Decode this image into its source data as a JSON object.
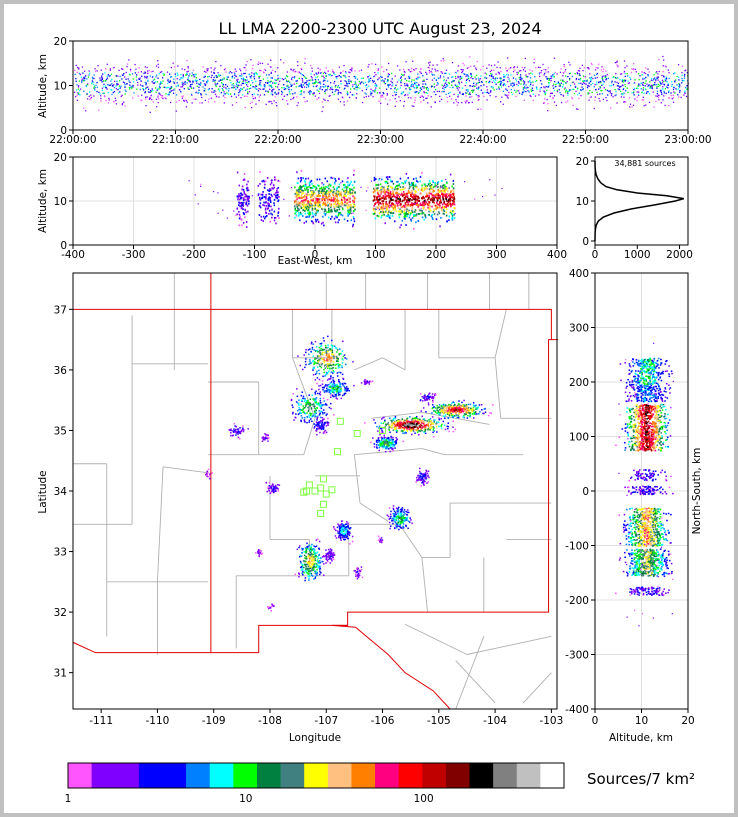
{
  "title": "LL LMA 2200-2300 UTC August 23, 2024",
  "sources_label": "34,881 sources",
  "colorbar": {
    "label": "Sources/7 km²",
    "tick_labels": [
      "1",
      "10",
      "100"
    ],
    "colors": [
      "#ff55ff",
      "#8000ff",
      "#8000ff",
      "#0000ff",
      "#0000ff",
      "#0080ff",
      "#00ffff",
      "#00ff00",
      "#008040",
      "#408080",
      "#ffff00",
      "#ffc080",
      "#ff8000",
      "#ff0080",
      "#ff0000",
      "#c00000",
      "#800000",
      "#000000",
      "#808080",
      "#c0c0c0",
      "#ffffff"
    ]
  },
  "chart_data": [
    {
      "id": "time-altitude",
      "type": "heatmap",
      "xlabel": "",
      "ylabel": "Altitude, km",
      "x_tick_labels": [
        "22:00:00",
        "22:10:00",
        "22:20:00",
        "22:30:00",
        "22:40:00",
        "22:50:00",
        "23:00:00"
      ],
      "xlim_minutes": [
        0,
        60
      ],
      "ylim": [
        0,
        20
      ],
      "y_ticks": [
        0,
        10,
        20
      ],
      "core_altitude_km": [
        8,
        14
      ],
      "grid": true
    },
    {
      "id": "eastwest-altitude",
      "type": "heatmap",
      "xlabel": "East-West, km",
      "ylabel": "Altitude, km",
      "xlim": [
        -400,
        400
      ],
      "x_ticks": [
        -400,
        -300,
        -200,
        -100,
        0,
        100,
        200,
        300,
        400
      ],
      "ylim": [
        0,
        20
      ],
      "y_ticks": [
        0,
        10,
        20
      ],
      "clusters": [
        {
          "x_range": [
            -130,
            -110
          ],
          "count": 20
        },
        {
          "x_range": [
            -95,
            -60
          ],
          "count": 25
        },
        {
          "x_range": [
            -35,
            65
          ],
          "count": 140
        },
        {
          "x_range": [
            95,
            230
          ],
          "count": 180
        }
      ],
      "grid": true
    },
    {
      "id": "altitude-histogram",
      "type": "line",
      "xlabel": "",
      "ylabel": "",
      "xlim": [
        0,
        2200
      ],
      "x_ticks": [
        0,
        1000,
        2000
      ],
      "ylim": [
        -1,
        21
      ],
      "y_ticks": [
        0,
        10,
        20
      ],
      "points": [
        [
          0,
          0
        ],
        [
          2,
          2
        ],
        [
          10,
          3
        ],
        [
          30,
          4
        ],
        [
          80,
          5
        ],
        [
          200,
          6
        ],
        [
          450,
          7
        ],
        [
          850,
          8
        ],
        [
          1400,
          9
        ],
        [
          1900,
          10
        ],
        [
          2100,
          10.6
        ],
        [
          1700,
          11.3
        ],
        [
          1000,
          12
        ],
        [
          520,
          12.8
        ],
        [
          260,
          13.6
        ],
        [
          140,
          14.5
        ],
        [
          70,
          15.5
        ],
        [
          30,
          16.5
        ],
        [
          10,
          17.5
        ],
        [
          2,
          18.5
        ],
        [
          0,
          20
        ]
      ]
    },
    {
      "id": "plan-view",
      "type": "scatter",
      "xlabel": "Longitude",
      "ylabel": "Latitude",
      "xlim": [
        -111.5,
        -102.9
      ],
      "ylim": [
        30.4,
        37.6
      ],
      "x_ticks": [
        -111,
        -110,
        -109,
        -108,
        -107,
        -106,
        -105,
        -104,
        -103
      ],
      "y_ticks": [
        31,
        32,
        33,
        34,
        35,
        36,
        37
      ],
      "storms": [
        {
          "lon": -107.0,
          "lat": 36.2,
          "dlon": 0.35,
          "dlat": 0.28,
          "count": 70
        },
        {
          "lon": -106.85,
          "lat": 35.7,
          "dlon": 0.25,
          "dlat": 0.15,
          "count": 40
        },
        {
          "lon": -107.3,
          "lat": 35.4,
          "dlon": 0.3,
          "dlat": 0.25,
          "count": 50
        },
        {
          "lon": -107.1,
          "lat": 35.1,
          "dlon": 0.12,
          "dlat": 0.12,
          "count": 20
        },
        {
          "lon": -105.5,
          "lat": 35.1,
          "dlon": 0.55,
          "dlat": 0.12,
          "count": 110
        },
        {
          "lon": -104.7,
          "lat": 35.35,
          "dlon": 0.45,
          "dlat": 0.12,
          "count": 90
        },
        {
          "lon": -105.95,
          "lat": 34.8,
          "dlon": 0.2,
          "dlat": 0.1,
          "count": 50
        },
        {
          "lon": -108.6,
          "lat": 35.0,
          "dlon": 0.15,
          "dlat": 0.1,
          "count": 12
        },
        {
          "lon": -108.1,
          "lat": 34.9,
          "dlon": 0.08,
          "dlat": 0.07,
          "count": 6
        },
        {
          "lon": -106.3,
          "lat": 35.8,
          "dlon": 0.08,
          "dlat": 0.05,
          "count": 6
        },
        {
          "lon": -105.2,
          "lat": 35.55,
          "dlon": 0.15,
          "dlat": 0.08,
          "count": 12
        },
        {
          "lon": -105.3,
          "lat": 34.25,
          "dlon": 0.1,
          "dlat": 0.12,
          "count": 18
        },
        {
          "lon": -107.95,
          "lat": 34.05,
          "dlon": 0.1,
          "dlat": 0.08,
          "count": 14
        },
        {
          "lon": -105.7,
          "lat": 33.55,
          "dlon": 0.18,
          "dlat": 0.18,
          "count": 45
        },
        {
          "lon": -106.7,
          "lat": 33.35,
          "dlon": 0.12,
          "dlat": 0.15,
          "count": 35
        },
        {
          "lon": -107.3,
          "lat": 32.85,
          "dlon": 0.2,
          "dlat": 0.3,
          "count": 65
        },
        {
          "lon": -106.95,
          "lat": 32.95,
          "dlon": 0.1,
          "dlat": 0.1,
          "count": 15
        },
        {
          "lon": -106.45,
          "lat": 32.65,
          "dlon": 0.06,
          "dlat": 0.08,
          "count": 8
        },
        {
          "lon": -108.2,
          "lat": 33.0,
          "dlon": 0.06,
          "dlat": 0.05,
          "count": 5
        },
        {
          "lon": -109.1,
          "lat": 34.3,
          "dlon": 0.05,
          "dlat": 0.08,
          "count": 4
        },
        {
          "lon": -108.0,
          "lat": 32.1,
          "dlon": 0.05,
          "dlat": 0.05,
          "count": 3
        },
        {
          "lon": -106.05,
          "lat": 33.2,
          "dlon": 0.05,
          "dlat": 0.06,
          "count": 4
        }
      ],
      "stations": [
        [
          -107.05,
          34.2
        ],
        [
          -107.1,
          34.05
        ],
        [
          -107.2,
          34.0
        ],
        [
          -107.35,
          34.0
        ],
        [
          -107.3,
          34.1
        ],
        [
          -107.4,
          33.98
        ],
        [
          -107.0,
          33.95
        ],
        [
          -106.9,
          34.02
        ],
        [
          -107.05,
          33.78
        ],
        [
          -107.1,
          33.63
        ],
        [
          -106.8,
          34.65
        ],
        [
          -106.45,
          34.95
        ],
        [
          -106.75,
          35.15
        ],
        [
          -106.0,
          35.0
        ]
      ],
      "state_border_color": "#e00000",
      "county_line_color": "#b0b0b0"
    },
    {
      "id": "altitude-northsouth",
      "type": "heatmap",
      "xlabel": "Altitude, km",
      "ylabel": "North-South, km",
      "xlim": [
        0,
        20
      ],
      "x_ticks": [
        0,
        10,
        20
      ],
      "ylim": [
        -400,
        400
      ],
      "y_ticks": [
        -400,
        -300,
        -200,
        -100,
        0,
        100,
        200,
        300,
        400
      ],
      "clusters": [
        {
          "y_range": [
            195,
            245
          ],
          "count": 60
        },
        {
          "y_range": [
            165,
            195
          ],
          "count": 40
        },
        {
          "y_range": [
            75,
            160
          ],
          "count": 150
        },
        {
          "y_range": [
            20,
            40
          ],
          "count": 15
        },
        {
          "y_range": [
            -5,
            10
          ],
          "count": 20
        },
        {
          "y_range": [
            -100,
            -30
          ],
          "count": 110
        },
        {
          "y_range": [
            -155,
            -105
          ],
          "count": 90
        },
        {
          "y_range": [
            -190,
            -175
          ],
          "count": 20
        }
      ],
      "grid": true
    }
  ]
}
